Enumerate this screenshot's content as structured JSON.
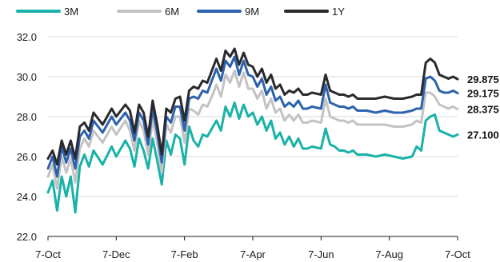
{
  "chart_data": {
    "type": "line",
    "title": "",
    "xlabel": "",
    "ylabel": "",
    "ylim": [
      22.0,
      32.0
    ],
    "y_ticks": [
      "22.0",
      "24.0",
      "26.0",
      "28.0",
      "30.0",
      "32.0"
    ],
    "x_ticks": [
      "7-Oct",
      "7-Dec",
      "7-Feb",
      "7-Apr",
      "7-Jun",
      "7-Aug",
      "7-Oct"
    ],
    "grid": "horizontal",
    "legend_position": "top-left",
    "series": [
      {
        "name": "3M",
        "color": "#1ab2a8",
        "end_label": "27.100",
        "end_value": 27.1,
        "points": [
          [
            0,
            24.2
          ],
          [
            1,
            24.8
          ],
          [
            2,
            23.3
          ],
          [
            3,
            25.0
          ],
          [
            4,
            24.0
          ],
          [
            5,
            25.0
          ],
          [
            6,
            23.2
          ],
          [
            7,
            25.5
          ],
          [
            8,
            26.1
          ],
          [
            9,
            25.5
          ],
          [
            10,
            26.3
          ],
          [
            12,
            25.6
          ],
          [
            14,
            26.5
          ],
          [
            15,
            26.0
          ],
          [
            17,
            26.8
          ],
          [
            18,
            26.4
          ],
          [
            19,
            25.5
          ],
          [
            20,
            26.9
          ],
          [
            21,
            26.3
          ],
          [
            22,
            25.4
          ],
          [
            23,
            26.9
          ],
          [
            24,
            25.8
          ],
          [
            25,
            24.6
          ],
          [
            26,
            26.8
          ],
          [
            27,
            26.1
          ],
          [
            28,
            27.1
          ],
          [
            29,
            26.9
          ],
          [
            30,
            25.6
          ],
          [
            31,
            27.5
          ],
          [
            32,
            26.8
          ],
          [
            33,
            26.5
          ],
          [
            34,
            27.1
          ],
          [
            35,
            27.0
          ],
          [
            36,
            27.4
          ],
          [
            37,
            27.8
          ],
          [
            38,
            27.3
          ],
          [
            39,
            28.5
          ],
          [
            40,
            28.0
          ],
          [
            41,
            28.7
          ],
          [
            42,
            27.9
          ],
          [
            43,
            28.6
          ],
          [
            44,
            28.0
          ],
          [
            45,
            28.2
          ],
          [
            46,
            27.6
          ],
          [
            47,
            28.0
          ],
          [
            48,
            27.3
          ],
          [
            49,
            27.8
          ],
          [
            50,
            26.9
          ],
          [
            51,
            27.2
          ],
          [
            52,
            26.6
          ],
          [
            53,
            27.0
          ],
          [
            54,
            26.5
          ],
          [
            55,
            26.9
          ],
          [
            56,
            26.4
          ],
          [
            57,
            26.4
          ],
          [
            58,
            26.5
          ],
          [
            60,
            26.4
          ],
          [
            61,
            27.4
          ],
          [
            62,
            26.6
          ],
          [
            63,
            26.5
          ],
          [
            64,
            26.3
          ],
          [
            65,
            26.3
          ],
          [
            66,
            26.2
          ],
          [
            67,
            26.3
          ],
          [
            68,
            26.1
          ],
          [
            70,
            26.1
          ],
          [
            72,
            26.0
          ],
          [
            74,
            26.1
          ],
          [
            76,
            26.0
          ],
          [
            78,
            25.9
          ],
          [
            80,
            26.0
          ],
          [
            81,
            26.5
          ],
          [
            82,
            26.3
          ],
          [
            83,
            27.8
          ],
          [
            84,
            28.0
          ],
          [
            85,
            28.1
          ],
          [
            86,
            27.3
          ],
          [
            87,
            27.2
          ],
          [
            88,
            27.1
          ],
          [
            89,
            27.0
          ],
          [
            90,
            27.1
          ]
        ]
      },
      {
        "name": "6M",
        "color": "#c3c3c3",
        "end_label": "28.375",
        "end_value": 28.375,
        "points": [
          [
            0,
            25.0
          ],
          [
            1,
            25.6
          ],
          [
            2,
            24.4
          ],
          [
            3,
            26.0
          ],
          [
            4,
            25.2
          ],
          [
            5,
            25.9
          ],
          [
            6,
            24.7
          ],
          [
            7,
            26.4
          ],
          [
            8,
            26.9
          ],
          [
            9,
            26.5
          ],
          [
            10,
            27.3
          ],
          [
            12,
            26.7
          ],
          [
            14,
            27.5
          ],
          [
            15,
            27.1
          ],
          [
            17,
            27.8
          ],
          [
            18,
            27.3
          ],
          [
            19,
            26.3
          ],
          [
            20,
            27.8
          ],
          [
            21,
            27.3
          ],
          [
            22,
            26.1
          ],
          [
            23,
            27.9
          ],
          [
            24,
            26.7
          ],
          [
            25,
            25.2
          ],
          [
            26,
            27.6
          ],
          [
            27,
            27.2
          ],
          [
            28,
            28.0
          ],
          [
            29,
            28.0
          ],
          [
            30,
            26.7
          ],
          [
            31,
            28.4
          ],
          [
            32,
            28.3
          ],
          [
            33,
            28.1
          ],
          [
            34,
            28.6
          ],
          [
            35,
            28.5
          ],
          [
            36,
            29.0
          ],
          [
            37,
            29.6
          ],
          [
            38,
            29.0
          ],
          [
            39,
            30.1
          ],
          [
            40,
            29.7
          ],
          [
            41,
            30.3
          ],
          [
            42,
            29.5
          ],
          [
            43,
            30.2
          ],
          [
            44,
            29.4
          ],
          [
            45,
            29.4
          ],
          [
            46,
            28.9
          ],
          [
            47,
            29.3
          ],
          [
            48,
            28.4
          ],
          [
            49,
            28.9
          ],
          [
            50,
            28.2
          ],
          [
            51,
            28.4
          ],
          [
            52,
            27.8
          ],
          [
            53,
            28.1
          ],
          [
            54,
            27.8
          ],
          [
            55,
            28.1
          ],
          [
            56,
            27.7
          ],
          [
            57,
            27.7
          ],
          [
            58,
            27.8
          ],
          [
            60,
            27.7
          ],
          [
            61,
            28.9
          ],
          [
            62,
            28.0
          ],
          [
            63,
            27.9
          ],
          [
            64,
            27.8
          ],
          [
            65,
            27.8
          ],
          [
            66,
            27.7
          ],
          [
            67,
            27.8
          ],
          [
            68,
            27.6
          ],
          [
            70,
            27.6
          ],
          [
            72,
            27.6
          ],
          [
            74,
            27.6
          ],
          [
            76,
            27.5
          ],
          [
            78,
            27.5
          ],
          [
            80,
            27.6
          ],
          [
            81,
            27.8
          ],
          [
            82,
            27.7
          ],
          [
            83,
            29.2
          ],
          [
            84,
            29.2
          ],
          [
            85,
            29.0
          ],
          [
            86,
            28.6
          ],
          [
            87,
            28.5
          ],
          [
            88,
            28.4
          ],
          [
            89,
            28.5
          ],
          [
            90,
            28.375
          ]
        ]
      },
      {
        "name": "9M",
        "color": "#2d62ac",
        "end_label": "29.175",
        "end_value": 29.175,
        "points": [
          [
            0,
            25.4
          ],
          [
            1,
            26.0
          ],
          [
            2,
            25.0
          ],
          [
            3,
            26.5
          ],
          [
            4,
            25.7
          ],
          [
            5,
            26.4
          ],
          [
            6,
            25.4
          ],
          [
            7,
            27.0
          ],
          [
            8,
            27.3
          ],
          [
            9,
            26.9
          ],
          [
            10,
            27.8
          ],
          [
            12,
            27.2
          ],
          [
            14,
            28.0
          ],
          [
            15,
            27.6
          ],
          [
            17,
            28.2
          ],
          [
            18,
            27.8
          ],
          [
            19,
            26.8
          ],
          [
            20,
            28.2
          ],
          [
            21,
            27.8
          ],
          [
            22,
            26.6
          ],
          [
            23,
            28.4
          ],
          [
            24,
            27.2
          ],
          [
            25,
            25.7
          ],
          [
            26,
            28.0
          ],
          [
            27,
            27.7
          ],
          [
            28,
            28.5
          ],
          [
            29,
            28.5
          ],
          [
            30,
            27.3
          ],
          [
            31,
            28.9
          ],
          [
            32,
            29.0
          ],
          [
            33,
            28.9
          ],
          [
            34,
            29.3
          ],
          [
            35,
            29.2
          ],
          [
            36,
            29.8
          ],
          [
            37,
            30.4
          ],
          [
            38,
            29.8
          ],
          [
            39,
            30.8
          ],
          [
            40,
            30.5
          ],
          [
            41,
            31.0
          ],
          [
            42,
            30.1
          ],
          [
            43,
            30.8
          ],
          [
            44,
            30.1
          ],
          [
            45,
            30.0
          ],
          [
            46,
            29.5
          ],
          [
            47,
            29.9
          ],
          [
            48,
            29.1
          ],
          [
            49,
            29.5
          ],
          [
            50,
            28.8
          ],
          [
            51,
            29.0
          ],
          [
            52,
            28.5
          ],
          [
            53,
            28.7
          ],
          [
            54,
            28.5
          ],
          [
            55,
            28.8
          ],
          [
            56,
            28.4
          ],
          [
            57,
            28.4
          ],
          [
            58,
            28.5
          ],
          [
            60,
            28.4
          ],
          [
            61,
            29.6
          ],
          [
            62,
            28.7
          ],
          [
            63,
            28.6
          ],
          [
            64,
            28.5
          ],
          [
            65,
            28.5
          ],
          [
            66,
            28.4
          ],
          [
            67,
            28.5
          ],
          [
            68,
            28.3
          ],
          [
            70,
            28.3
          ],
          [
            72,
            28.2
          ],
          [
            74,
            28.3
          ],
          [
            76,
            28.2
          ],
          [
            78,
            28.2
          ],
          [
            80,
            28.3
          ],
          [
            81,
            28.4
          ],
          [
            82,
            28.4
          ],
          [
            83,
            29.9
          ],
          [
            84,
            30.0
          ],
          [
            85,
            29.8
          ],
          [
            86,
            29.3
          ],
          [
            87,
            29.2
          ],
          [
            88,
            29.2
          ],
          [
            89,
            29.3
          ],
          [
            90,
            29.175
          ]
        ]
      },
      {
        "name": "1Y",
        "color": "#2a2a2e",
        "end_label": "29.875",
        "end_value": 29.875,
        "points": [
          [
            0,
            25.9
          ],
          [
            1,
            26.3
          ],
          [
            2,
            25.6
          ],
          [
            3,
            26.8
          ],
          [
            4,
            26.1
          ],
          [
            5,
            26.8
          ],
          [
            6,
            25.9
          ],
          [
            7,
            27.5
          ],
          [
            8,
            27.7
          ],
          [
            9,
            27.3
          ],
          [
            10,
            28.2
          ],
          [
            12,
            27.6
          ],
          [
            14,
            28.4
          ],
          [
            15,
            28.0
          ],
          [
            17,
            28.6
          ],
          [
            18,
            28.3
          ],
          [
            19,
            27.2
          ],
          [
            20,
            28.6
          ],
          [
            21,
            28.2
          ],
          [
            22,
            27.0
          ],
          [
            23,
            28.8
          ],
          [
            24,
            27.6
          ],
          [
            25,
            26.1
          ],
          [
            26,
            28.4
          ],
          [
            27,
            28.2
          ],
          [
            28,
            28.9
          ],
          [
            29,
            29.0
          ],
          [
            30,
            27.8
          ],
          [
            31,
            29.3
          ],
          [
            32,
            29.5
          ],
          [
            33,
            29.4
          ],
          [
            34,
            29.8
          ],
          [
            35,
            29.7
          ],
          [
            36,
            30.3
          ],
          [
            37,
            30.9
          ],
          [
            38,
            30.3
          ],
          [
            39,
            31.3
          ],
          [
            40,
            31.0
          ],
          [
            41,
            31.4
          ],
          [
            42,
            30.6
          ],
          [
            43,
            31.2
          ],
          [
            44,
            30.6
          ],
          [
            45,
            30.5
          ],
          [
            46,
            30.0
          ],
          [
            47,
            30.4
          ],
          [
            48,
            29.7
          ],
          [
            49,
            30.1
          ],
          [
            50,
            29.4
          ],
          [
            51,
            29.6
          ],
          [
            52,
            29.1
          ],
          [
            53,
            29.3
          ],
          [
            54,
            29.2
          ],
          [
            55,
            29.4
          ],
          [
            56,
            29.1
          ],
          [
            57,
            29.1
          ],
          [
            58,
            29.2
          ],
          [
            60,
            29.1
          ],
          [
            61,
            30.1
          ],
          [
            62,
            29.3
          ],
          [
            63,
            29.2
          ],
          [
            64,
            29.1
          ],
          [
            65,
            29.1
          ],
          [
            66,
            29.0
          ],
          [
            67,
            29.1
          ],
          [
            68,
            28.9
          ],
          [
            70,
            28.9
          ],
          [
            72,
            28.9
          ],
          [
            74,
            29.0
          ],
          [
            76,
            28.9
          ],
          [
            78,
            28.9
          ],
          [
            80,
            29.0
          ],
          [
            81,
            29.1
          ],
          [
            82,
            29.1
          ],
          [
            83,
            30.7
          ],
          [
            84,
            30.9
          ],
          [
            85,
            30.7
          ],
          [
            86,
            30.1
          ],
          [
            87,
            30.0
          ],
          [
            88,
            29.9
          ],
          [
            89,
            30.0
          ],
          [
            90,
            29.875
          ]
        ]
      }
    ]
  }
}
